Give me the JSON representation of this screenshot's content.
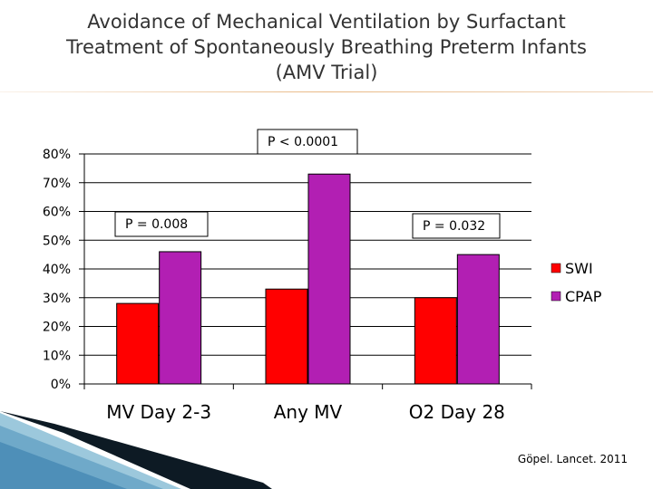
{
  "title": {
    "line1": "Avoidance of Mechanical Ventilation by Surfactant",
    "line2": "Treatment of Spontaneously Breathing Preterm Infants",
    "line3": "(AMV Trial)"
  },
  "citation": "Göpel. Lancet. 2011",
  "chart_data": {
    "type": "bar",
    "categories": [
      "MV Day 2-3",
      "Any MV",
      "O2 Day 28"
    ],
    "series": [
      {
        "name": "SWI",
        "values": [
          28,
          33,
          30
        ],
        "color": "#ff0000"
      },
      {
        "name": "CPAP",
        "values": [
          46,
          73,
          45
        ],
        "color": "#b21fb3"
      }
    ],
    "y_ticks": [
      "0%",
      "10%",
      "20%",
      "30%",
      "40%",
      "50%",
      "60%",
      "70%",
      "80%"
    ],
    "ylim": [
      0,
      80
    ],
    "grid": true,
    "legend": "right",
    "annotations": [
      "P = 0.008",
      "P < 0.0001",
      "P = 0.032"
    ]
  }
}
